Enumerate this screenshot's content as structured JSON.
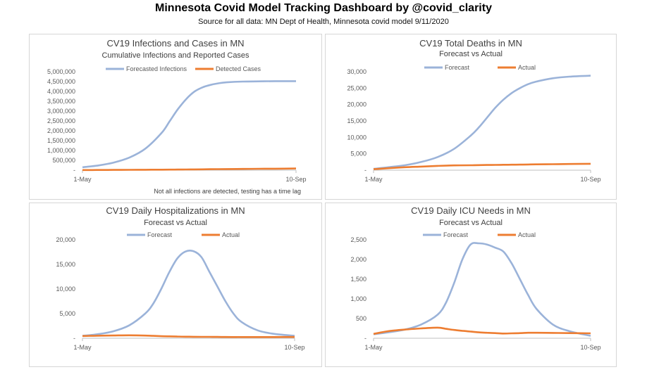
{
  "header": {
    "title": "Minnesota Covid Model Tracking Dashboard by @covid_clarity",
    "subtitle": "Source for all data: MN Dept of Health, Minnesota covid model 9/11/2020"
  },
  "colors": {
    "forecast": "#9bb3d9",
    "actual": "#ed7d31",
    "axis": "#bfbfbf",
    "text": "#595959"
  },
  "chart_data": [
    {
      "type": "line",
      "title": "CV19 Infections and Cases in MN",
      "subtitle": "Cumulative Infections and Reported Cases",
      "note": "Not all infections are detected, testing has a time lag",
      "x_tick_labels": [
        "1-May",
        "10-Sep"
      ],
      "y_ticks": [
        0,
        500000,
        1000000,
        1500000,
        2000000,
        2500000,
        3000000,
        3500000,
        4000000,
        4500000,
        5000000
      ],
      "y_tick_labels": [
        "-",
        "500,000",
        "1,000,000",
        "1,500,000",
        "2,000,000",
        "2,500,000",
        "3,000,000",
        "3,500,000",
        "4,000,000",
        "4,500,000",
        "5,000,000"
      ],
      "ylim": [
        0,
        5000000
      ],
      "x": [
        1,
        10,
        20,
        30,
        40,
        50,
        55,
        60,
        65,
        70,
        75,
        80,
        85,
        90,
        100,
        110,
        120,
        133
      ],
      "series": [
        {
          "name": "Forecasted Infections",
          "color": "#9bb3d9",
          "values": [
            150000,
            230000,
            380000,
            640000,
            1100000,
            1900000,
            2500000,
            3100000,
            3600000,
            3980000,
            4200000,
            4330000,
            4410000,
            4460000,
            4500000,
            4510000,
            4520000,
            4520000
          ]
        },
        {
          "name": "Detected Cases",
          "color": "#ed7d31",
          "values": [
            6000,
            9000,
            13000,
            17000,
            22000,
            26000,
            28000,
            31000,
            35000,
            39000,
            44000,
            49000,
            54000,
            58000,
            64000,
            70000,
            76000,
            84000
          ]
        }
      ]
    },
    {
      "type": "line",
      "title": "CV19 Total Deaths in MN",
      "subtitle": "Forecast vs Actual",
      "x_tick_labels": [
        "1-May",
        "10-Sep"
      ],
      "y_ticks": [
        0,
        5000,
        10000,
        15000,
        20000,
        25000,
        30000
      ],
      "y_tick_labels": [
        "-",
        "5,000",
        "10,000",
        "15,000",
        "20,000",
        "25,000",
        "30,000"
      ],
      "ylim": [
        0,
        30000
      ],
      "x": [
        1,
        10,
        20,
        30,
        40,
        50,
        60,
        65,
        70,
        75,
        80,
        85,
        90,
        95,
        100,
        110,
        120,
        133
      ],
      "series": [
        {
          "name": "Forecast",
          "color": "#9bb3d9",
          "values": [
            400,
            900,
            1500,
            2500,
            4000,
            6500,
            10500,
            13000,
            16000,
            19000,
            21500,
            23500,
            25000,
            26200,
            27000,
            28000,
            28500,
            28800
          ]
        },
        {
          "name": "Actual",
          "color": "#ed7d31",
          "values": [
            300,
            600,
            900,
            1100,
            1300,
            1450,
            1500,
            1550,
            1580,
            1600,
            1640,
            1670,
            1700,
            1740,
            1770,
            1830,
            1890,
            1950
          ]
        }
      ]
    },
    {
      "type": "line",
      "title": "CV19 Daily Hospitalizations in MN",
      "subtitle": "Forecast vs Actual",
      "x_tick_labels": [
        "1-May",
        "10-Sep"
      ],
      "y_ticks": [
        0,
        5000,
        10000,
        15000,
        20000
      ],
      "y_tick_labels": [
        "-",
        "5,000",
        "10,000",
        "15,000",
        "20,000"
      ],
      "ylim": [
        0,
        20000
      ],
      "x": [
        1,
        10,
        20,
        30,
        40,
        45,
        50,
        55,
        60,
        65,
        70,
        75,
        80,
        85,
        90,
        95,
        100,
        110,
        120,
        133
      ],
      "series": [
        {
          "name": "Forecast",
          "color": "#9bb3d9",
          "values": [
            500,
            800,
            1400,
            2600,
            5000,
            7000,
            10000,
            13400,
            16200,
            17600,
            17700,
            16500,
            13500,
            10500,
            7500,
            5000,
            3300,
            1600,
            900,
            500
          ]
        },
        {
          "name": "Actual",
          "color": "#ed7d31",
          "values": [
            450,
            520,
            560,
            600,
            550,
            480,
            420,
            380,
            350,
            320,
            300,
            290,
            280,
            270,
            260,
            250,
            250,
            240,
            250,
            260
          ]
        }
      ]
    },
    {
      "type": "line",
      "title": "CV19 Daily ICU Needs in MN",
      "subtitle": "Forecast vs Actual",
      "x_tick_labels": [
        "1-May",
        "10-Sep"
      ],
      "y_ticks": [
        0,
        500,
        1000,
        1500,
        2000,
        2500
      ],
      "y_tick_labels": [
        "-",
        "500",
        "1,000",
        "1,500",
        "2,000",
        "2,500"
      ],
      "ylim": [
        0,
        2500
      ],
      "x": [
        1,
        10,
        20,
        30,
        40,
        45,
        50,
        55,
        60,
        65,
        70,
        75,
        80,
        85,
        90,
        95,
        100,
        110,
        120,
        133
      ],
      "series": [
        {
          "name": "Forecast",
          "color": "#9bb3d9",
          "values": [
            100,
            150,
            220,
            350,
            600,
            900,
            1400,
            2000,
            2380,
            2410,
            2380,
            2300,
            2200,
            1900,
            1500,
            1100,
            750,
            350,
            180,
            60
          ]
        },
        {
          "name": "Actual",
          "color": "#ed7d31",
          "values": [
            110,
            180,
            220,
            250,
            270,
            240,
            210,
            190,
            170,
            150,
            140,
            130,
            120,
            125,
            130,
            140,
            140,
            135,
            130,
            125
          ]
        }
      ]
    }
  ]
}
